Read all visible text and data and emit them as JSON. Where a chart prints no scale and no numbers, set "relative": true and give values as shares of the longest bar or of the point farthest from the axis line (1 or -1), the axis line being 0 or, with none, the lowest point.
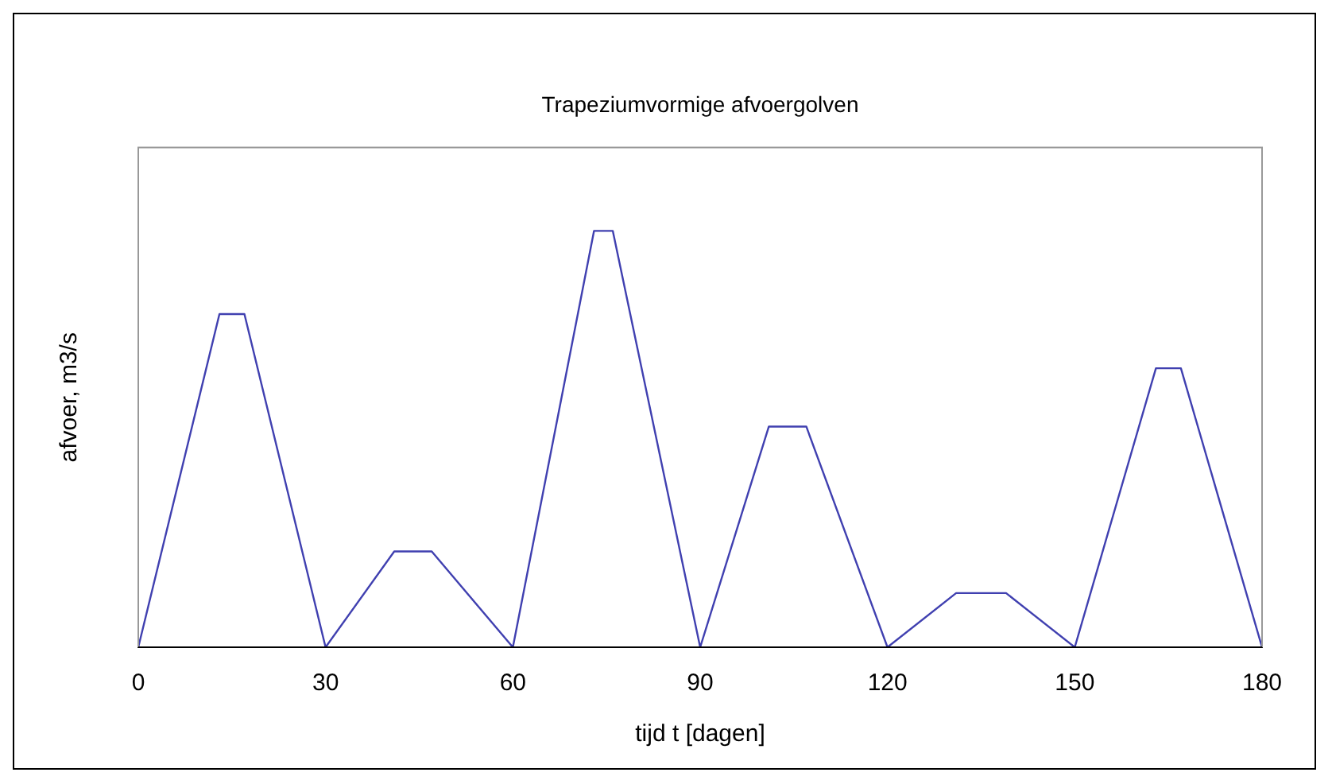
{
  "chart_data": {
    "type": "line",
    "title": "Trapeziumvormige afvoergolven",
    "xlabel": "tijd t [dagen]",
    "ylabel": "afvoer, m3/s",
    "relative": true,
    "x": [
      0,
      13,
      17,
      30,
      41,
      47,
      60,
      73,
      76,
      90,
      101,
      107,
      120,
      131,
      139,
      150,
      163,
      167,
      180
    ],
    "series": [
      {
        "color": "#4040b0",
        "values": [
          0,
          0.8,
          0.8,
          0,
          0.23,
          0.23,
          0,
          1,
          1,
          0,
          0.53,
          0.53,
          0,
          0.13,
          0.13,
          0,
          0.67,
          0.67,
          0
        ]
      }
    ],
    "xlim": [
      0,
      180
    ],
    "xticks": [
      0,
      30,
      60,
      90,
      120,
      150,
      180
    ],
    "grid": false,
    "legend": false,
    "marker": "none",
    "line_style": "solid"
  }
}
